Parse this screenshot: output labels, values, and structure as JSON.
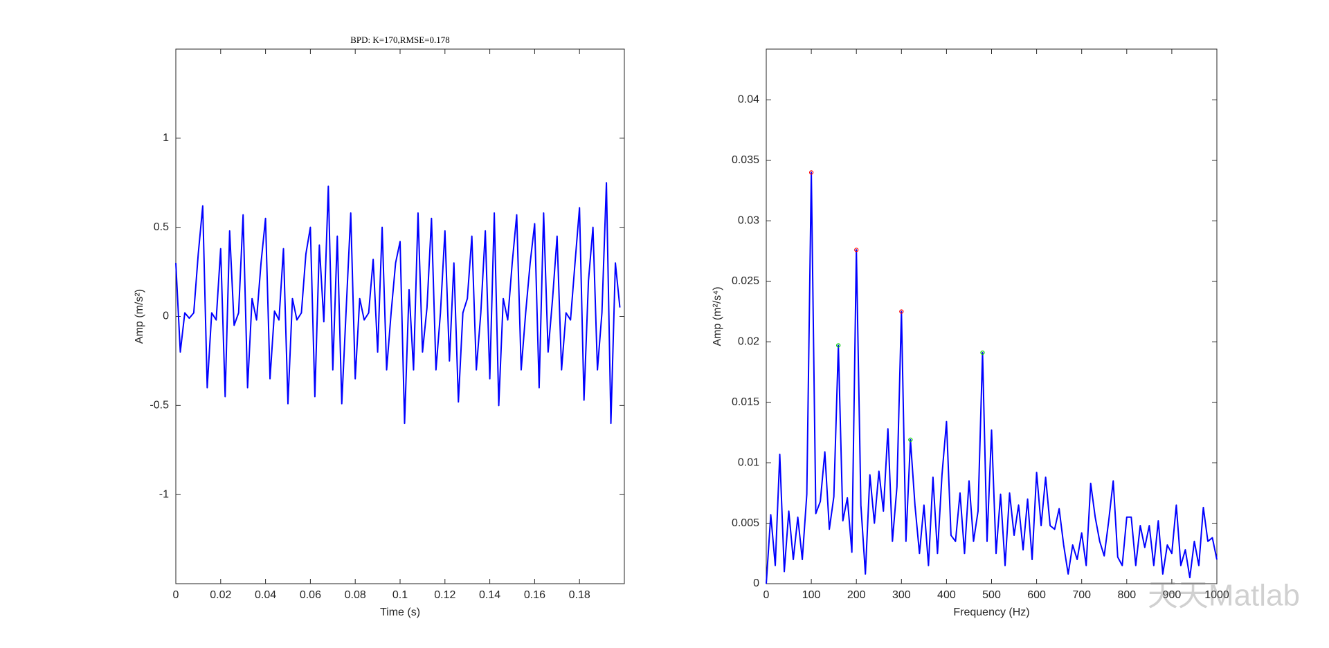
{
  "chart_data": [
    {
      "type": "line",
      "title": "BPD: K=170,RMSE=0.178",
      "xlabel": "Time (s)",
      "ylabel": "Amp (m/s²)",
      "xlim": [
        0,
        0.2
      ],
      "ylim": [
        -1.5,
        1.5
      ],
      "xticks": [
        0,
        0.02,
        0.04,
        0.06,
        0.08,
        0.1,
        0.12,
        0.14,
        0.16,
        0.18
      ],
      "yticks": [
        -1,
        -0.5,
        0,
        0.5,
        1
      ],
      "series": [
        {
          "color": "#0000ff",
          "line": true,
          "marker": "none",
          "x": [
            0,
            0.002,
            0.004,
            0.006,
            0.008,
            0.01,
            0.012,
            0.014,
            0.016,
            0.018,
            0.02,
            0.022,
            0.024,
            0.026,
            0.028,
            0.03,
            0.032,
            0.034,
            0.036,
            0.038,
            0.04,
            0.042,
            0.044,
            0.046,
            0.048,
            0.05,
            0.052,
            0.054,
            0.056,
            0.058,
            0.06,
            0.062,
            0.064,
            0.066,
            0.068,
            0.07,
            0.072,
            0.074,
            0.076,
            0.078,
            0.08,
            0.082,
            0.084,
            0.086,
            0.088,
            0.09,
            0.092,
            0.094,
            0.096,
            0.098,
            0.1,
            0.102,
            0.104,
            0.106,
            0.108,
            0.11,
            0.112,
            0.114,
            0.116,
            0.118,
            0.12,
            0.122,
            0.124,
            0.126,
            0.128,
            0.13,
            0.132,
            0.134,
            0.136,
            0.138,
            0.14,
            0.142,
            0.144,
            0.146,
            0.148,
            0.15,
            0.152,
            0.154,
            0.156,
            0.158,
            0.16,
            0.162,
            0.164,
            0.166,
            0.168,
            0.17,
            0.172,
            0.174,
            0.176,
            0.178,
            0.18,
            0.182,
            0.184,
            0.186,
            0.188,
            0.19,
            0.192,
            0.194,
            0.196,
            0.198
          ],
          "values": [
            0.3,
            -0.2,
            0.02,
            -0.01,
            0.02,
            0.35,
            0.62,
            -0.4,
            0.02,
            -0.02,
            0.38,
            -0.45,
            0.48,
            -0.05,
            0.02,
            0.57,
            -0.4,
            0.1,
            -0.02,
            0.3,
            0.55,
            -0.35,
            0.03,
            -0.02,
            0.38,
            -0.49,
            0.1,
            -0.02,
            0.02,
            0.35,
            0.5,
            -0.45,
            0.4,
            -0.03,
            0.73,
            -0.3,
            0.45,
            -0.49,
            0.05,
            0.58,
            -0.35,
            0.1,
            -0.02,
            0.02,
            0.32,
            -0.2,
            0.5,
            -0.3,
            0.02,
            0.3,
            0.42,
            -0.6,
            0.15,
            -0.3,
            0.58,
            -0.2,
            0.05,
            0.55,
            -0.3,
            0.02,
            0.48,
            -0.25,
            0.3,
            -0.48,
            0.02,
            0.1,
            0.45,
            -0.3,
            0.02,
            0.48,
            -0.35,
            0.58,
            -0.5,
            0.1,
            -0.02,
            0.3,
            0.57,
            -0.3,
            0.02,
            0.3,
            0.52,
            -0.4,
            0.58,
            -0.2,
            0.1,
            0.45,
            -0.3,
            0.02,
            -0.02,
            0.3,
            0.61,
            -0.47,
            0.2,
            0.5,
            -0.3,
            0.02,
            0.75,
            -0.6,
            0.3,
            0.05
          ]
        }
      ]
    },
    {
      "type": "line",
      "xlabel": "Frequency (Hz)",
      "ylabel": "Amp (m²/s⁴)",
      "xlim": [
        0,
        1000
      ],
      "ylim": [
        0,
        0.0442
      ],
      "xticks": [
        0,
        100,
        200,
        300,
        400,
        500,
        600,
        700,
        800,
        900,
        1000
      ],
      "yticks": [
        0,
        0.005,
        0.01,
        0.015,
        0.02,
        0.025,
        0.03,
        0.035,
        0.04
      ],
      "watermark": "天天Matlab",
      "series": [
        {
          "color": "#0000ff",
          "line": true,
          "marker": "none",
          "x": [
            0,
            10,
            20,
            30,
            40,
            50,
            60,
            70,
            80,
            90,
            100,
            110,
            120,
            130,
            140,
            150,
            160,
            170,
            180,
            190,
            200,
            210,
            220,
            230,
            240,
            250,
            260,
            270,
            280,
            290,
            300,
            310,
            320,
            330,
            340,
            350,
            360,
            370,
            380,
            390,
            400,
            410,
            420,
            430,
            440,
            450,
            460,
            470,
            480,
            490,
            500,
            510,
            520,
            530,
            540,
            550,
            560,
            570,
            580,
            590,
            600,
            610,
            620,
            630,
            640,
            650,
            660,
            670,
            680,
            690,
            700,
            710,
            720,
            730,
            740,
            750,
            760,
            770,
            780,
            790,
            800,
            810,
            820,
            830,
            840,
            850,
            860,
            870,
            880,
            890,
            900,
            910,
            920,
            930,
            940,
            950,
            960,
            970,
            980,
            990,
            1000
          ],
          "values": [
            0,
            0.0057,
            0.0015,
            0.0107,
            0.001,
            0.006,
            0.002,
            0.0055,
            0.002,
            0.0074,
            0.034,
            0.0058,
            0.0068,
            0.0109,
            0.0045,
            0.0072,
            0.0197,
            0.0052,
            0.0071,
            0.0026,
            0.0276,
            0.0065,
            0.0008,
            0.009,
            0.005,
            0.0093,
            0.006,
            0.0128,
            0.0035,
            0.008,
            0.0225,
            0.0035,
            0.0119,
            0.0065,
            0.0025,
            0.0065,
            0.0015,
            0.0088,
            0.0025,
            0.009,
            0.0134,
            0.004,
            0.0035,
            0.0075,
            0.0025,
            0.0085,
            0.0035,
            0.006,
            0.0191,
            0.0035,
            0.0127,
            0.0025,
            0.0074,
            0.0015,
            0.0075,
            0.004,
            0.0065,
            0.0028,
            0.007,
            0.002,
            0.0092,
            0.0048,
            0.0088,
            0.0048,
            0.0045,
            0.0062,
            0.0032,
            0.0008,
            0.0032,
            0.002,
            0.0042,
            0.0015,
            0.0083,
            0.0055,
            0.0035,
            0.0023,
            0.0052,
            0.0085,
            0.0022,
            0.0015,
            0.0055,
            0.0055,
            0.0015,
            0.0048,
            0.003,
            0.0048,
            0.0015,
            0.0052,
            0.0008,
            0.0032,
            0.0025,
            0.0065,
            0.0015,
            0.0028,
            0.0005,
            0.0035,
            0.0015,
            0.0063,
            0.0035,
            0.0038,
            0.002
          ]
        },
        {
          "color": "#ff0000",
          "line": false,
          "marker": "circle",
          "x": [
            100,
            200,
            300
          ],
          "values": [
            0.034,
            0.0276,
            0.0225
          ]
        },
        {
          "color": "#00cc00",
          "line": false,
          "marker": "circle",
          "x": [
            160,
            320,
            480
          ],
          "values": [
            0.0197,
            0.0119,
            0.0191
          ]
        }
      ]
    }
  ]
}
